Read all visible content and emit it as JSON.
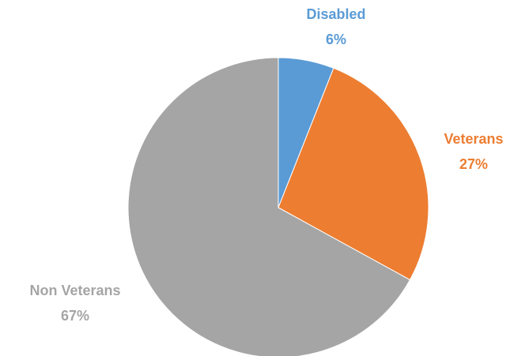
{
  "chart_data": {
    "type": "pie",
    "title": "",
    "start_angle_deg": 0,
    "direction": "clockwise",
    "legend": "none",
    "slices": [
      {
        "name": "Disabled",
        "value": 6,
        "percent_label": "6%",
        "color": "#5B9BD5"
      },
      {
        "name": "Veterans",
        "value": 27,
        "percent_label": "27%",
        "color": "#ED7D31"
      },
      {
        "name": "Non Veterans",
        "value": 67,
        "percent_label": "67%",
        "color": "#A5A5A5"
      }
    ]
  }
}
